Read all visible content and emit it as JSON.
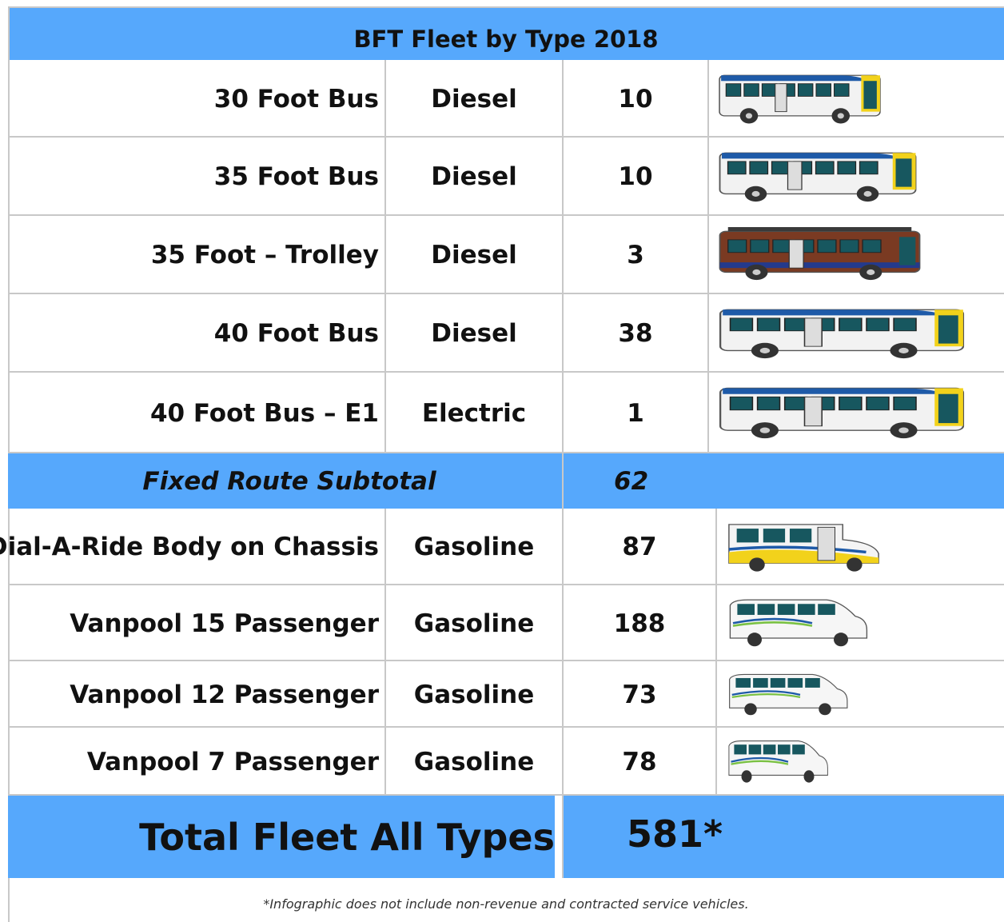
{
  "title": "BFT Fleet by Type 2018",
  "fixed_route": [
    {
      "type": "30 Foot Bus",
      "fuel": "Diesel",
      "count": 10
    },
    {
      "type": "35 Foot Bus",
      "fuel": "Diesel",
      "count": 10
    },
    {
      "type": "35 Foot – Trolley",
      "fuel": "Diesel",
      "count": 3
    },
    {
      "type": "40 Foot Bus",
      "fuel": "Diesel",
      "count": 38
    },
    {
      "type": "40 Foot Bus – E1",
      "fuel": "Electric",
      "count": 1
    }
  ],
  "fixed_route_subtotal": {
    "label": "Fixed Route Subtotal",
    "count": 62
  },
  "other_vehicles": [
    {
      "type": "Dial-A-Ride Body on Chassis",
      "fuel": "Gasoline",
      "count": 87
    },
    {
      "type": "Vanpool 15 Passenger",
      "fuel": "Gasoline",
      "count": 188
    },
    {
      "type": "Vanpool 12 Passenger",
      "fuel": "Gasoline",
      "count": 73
    },
    {
      "type": "Vanpool 7 Passenger",
      "fuel": "Gasoline",
      "count": 78
    }
  ],
  "total": {
    "label": "Total Fleet All Types",
    "count": "581*"
  },
  "footnote": "*Infographic does not include non-revenue and contracted service vehicles."
}
